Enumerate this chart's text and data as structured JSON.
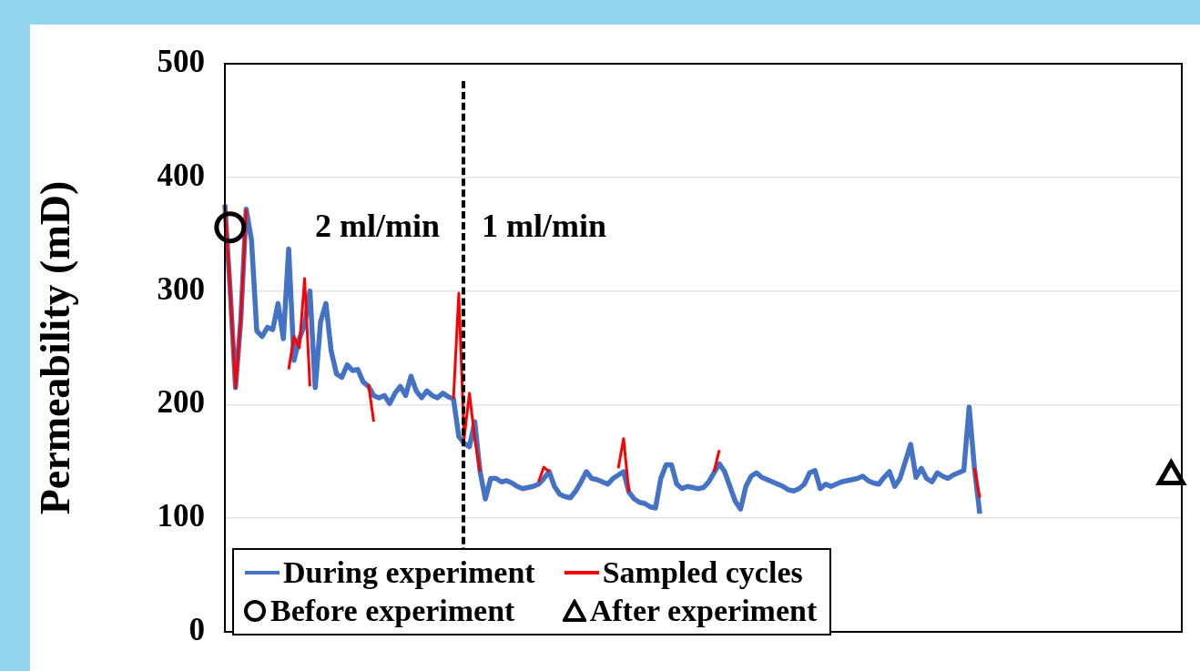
{
  "chart_data": {
    "type": "line",
    "ylabel": "Permeability (mD)",
    "ylim": [
      0,
      500
    ],
    "yticks": [
      0,
      100,
      200,
      300,
      400,
      500
    ],
    "grid": "y",
    "tick_labels": "y",
    "legend": "bottom left",
    "categories": [
      null,
      null,
      null,
      null,
      null,
      null,
      null,
      null,
      null,
      null,
      null,
      null,
      null,
      null,
      null,
      null,
      null,
      null,
      null,
      null,
      null,
      null,
      null,
      null,
      null,
      null,
      null,
      null,
      null,
      null,
      null,
      null,
      null,
      null,
      null,
      null,
      null,
      null,
      null,
      null,
      null,
      null,
      null,
      null,
      null,
      null,
      null,
      null,
      null,
      null,
      null,
      null,
      null,
      null,
      null,
      null,
      null,
      null,
      null,
      null,
      null,
      null,
      null,
      null,
      null,
      null,
      null,
      null,
      null,
      null,
      null,
      null,
      null,
      null,
      null,
      null,
      null,
      null,
      null,
      null,
      null,
      null,
      null,
      null,
      null,
      null,
      null,
      null,
      null,
      null,
      null,
      null,
      null,
      null,
      null,
      null,
      null,
      null,
      null,
      null,
      null,
      null,
      null,
      null,
      null,
      null,
      null,
      null,
      null,
      null,
      null,
      null,
      null,
      null,
      null,
      null,
      null,
      null,
      null,
      null,
      null,
      null,
      null,
      null,
      null,
      null,
      null,
      null,
      null,
      null,
      null,
      null,
      null,
      null,
      null,
      null,
      null,
      null,
      null,
      null,
      null,
      null,
      null,
      null,
      null,
      null,
      null,
      null,
      null,
      null,
      null,
      null,
      null,
      null,
      null,
      null,
      null,
      null,
      null,
      null,
      null,
      null,
      null,
      null,
      null,
      null,
      null,
      null,
      null,
      null,
      null,
      null,
      null,
      null,
      null,
      null,
      null,
      null,
      null,
      null,
      null
    ],
    "annotations": [
      "2 ml/min",
      "1 ml/min"
    ],
    "series": [
      {
        "name": "During experiment",
        "color": "#4472c4",
        "values": [
          376,
          300,
          215,
          275,
          372,
          345,
          265,
          260,
          268,
          266,
          289,
          258,
          337,
          239,
          258,
          270,
          300,
          215,
          273,
          289,
          247,
          227,
          224,
          235,
          230,
          231,
          220,
          216,
          208,
          206,
          208,
          201,
          210,
          216,
          208,
          225,
          212,
          206,
          212,
          208,
          206,
          210,
          207,
          205,
          172,
          166,
          163,
          185,
          141,
          117,
          135,
          135,
          132,
          133,
          131,
          128,
          126,
          127,
          128,
          130,
          135,
          141,
          128,
          121,
          119,
          118,
          124,
          132,
          141,
          135,
          134,
          132,
          130,
          135,
          138,
          141,
          123,
          117,
          114,
          113,
          110,
          109,
          135,
          147,
          147,
          130,
          126,
          128,
          127,
          126,
          127,
          132,
          140,
          148,
          141,
          128,
          115,
          108,
          128,
          137,
          140,
          136,
          134,
          132,
          130,
          128,
          125,
          124,
          126,
          130,
          140,
          142,
          126,
          130,
          128,
          130,
          132,
          133,
          134,
          135,
          137,
          133,
          131,
          130,
          136,
          141,
          128,
          135,
          150,
          165,
          136,
          144,
          135,
          132,
          140,
          137,
          135,
          138,
          140,
          142,
          198,
          144,
          104,
          null,
          null,
          null,
          null,
          null,
          null,
          null,
          null,
          null,
          null,
          null,
          null,
          null,
          null,
          null,
          null,
          null,
          null,
          null,
          null,
          null,
          null,
          null,
          null,
          null,
          null,
          null,
          null,
          null,
          null,
          null,
          null,
          null,
          null,
          null,
          null,
          null,
          null
        ]
      },
      {
        "name": "Sampled cycles",
        "color": "#ff0000",
        "values": [
          376,
          300,
          215,
          275,
          372,
          null,
          null,
          null,
          null,
          null,
          null,
          null,
          231,
          260,
          250,
          311,
          216,
          null,
          null,
          null,
          null,
          null,
          null,
          null,
          null,
          null,
          null,
          218,
          185,
          null,
          null,
          null,
          null,
          null,
          null,
          null,
          null,
          null,
          null,
          null,
          null,
          null,
          null,
          205,
          298,
          170,
          210,
          170,
          141,
          null,
          null,
          null,
          null,
          null,
          null,
          null,
          null,
          null,
          null,
          132,
          145,
          141,
          null,
          null,
          null,
          null,
          null,
          null,
          null,
          null,
          null,
          null,
          null,
          null,
          144,
          170,
          123,
          null,
          null,
          null,
          null,
          null,
          null,
          null,
          null,
          null,
          null,
          null,
          null,
          null,
          null,
          null,
          141,
          160,
          null,
          null,
          null,
          null,
          null,
          null,
          null,
          null,
          null,
          null,
          null,
          null,
          null,
          null,
          null,
          null,
          null,
          null,
          null,
          null,
          null,
          null,
          null,
          null,
          null,
          null,
          null,
          null,
          null,
          null,
          null,
          null,
          null,
          null,
          null,
          null,
          null,
          null,
          null,
          null,
          null,
          null,
          null,
          null,
          null,
          null,
          null,
          144,
          118,
          null,
          null,
          null,
          null,
          null,
          null,
          null,
          null,
          null,
          null,
          null,
          null,
          null,
          null,
          null,
          null,
          null,
          null,
          null,
          null,
          null,
          null,
          null,
          null,
          null,
          null,
          null,
          null,
          null,
          null,
          null,
          null,
          null,
          null,
          null,
          null,
          null,
          null
        ]
      },
      {
        "name": "Before experiment",
        "marker": "circle",
        "color": "#000000",
        "values": [
          null,
          356,
          null,
          null,
          null,
          null,
          null,
          null,
          null,
          null,
          null,
          null,
          null,
          null,
          null,
          null,
          null,
          null,
          null,
          null,
          null,
          null,
          null,
          null,
          null,
          null,
          null,
          null,
          null,
          null,
          null,
          null,
          null,
          null,
          null,
          null,
          null,
          null,
          null,
          null,
          null,
          null,
          null,
          null,
          null,
          null,
          null,
          null,
          null,
          null,
          null,
          null,
          null,
          null,
          null,
          null,
          null,
          null,
          null,
          null,
          null,
          null,
          null,
          null,
          null,
          null,
          null,
          null,
          null,
          null,
          null,
          null,
          null,
          null,
          null,
          null,
          null,
          null,
          null,
          null,
          null,
          null,
          null,
          null,
          null,
          null,
          null,
          null,
          null,
          null,
          null,
          null,
          null,
          null,
          null,
          null,
          null,
          null,
          null,
          null,
          null,
          null,
          null,
          null,
          null,
          null,
          null,
          null,
          null,
          null,
          null,
          null,
          null,
          null,
          null,
          null,
          null,
          null,
          null,
          null,
          null,
          null,
          null,
          null,
          null,
          null,
          null,
          null,
          null,
          null,
          null,
          null,
          null,
          null,
          null,
          null,
          null,
          null,
          null,
          null,
          null,
          null,
          null,
          null,
          null,
          null,
          null,
          null,
          null,
          null,
          null,
          null,
          null,
          null,
          null,
          null,
          null,
          null,
          null,
          null,
          null,
          null,
          null,
          null,
          null,
          null,
          null,
          null,
          null,
          null,
          null,
          null,
          null,
          null,
          null,
          null,
          null,
          null,
          null,
          null,
          null
        ]
      },
      {
        "name": "After experiment",
        "marker": "triangle",
        "color": "#000000",
        "values": [
          null,
          null,
          null,
          null,
          null,
          null,
          null,
          null,
          null,
          null,
          null,
          null,
          null,
          null,
          null,
          null,
          null,
          null,
          null,
          null,
          null,
          null,
          null,
          null,
          null,
          null,
          null,
          null,
          null,
          null,
          null,
          null,
          null,
          null,
          null,
          null,
          null,
          null,
          null,
          null,
          null,
          null,
          null,
          null,
          null,
          null,
          null,
          null,
          null,
          null,
          null,
          null,
          null,
          null,
          null,
          null,
          null,
          null,
          null,
          null,
          null,
          null,
          null,
          null,
          null,
          null,
          null,
          null,
          null,
          null,
          null,
          null,
          null,
          null,
          null,
          null,
          null,
          null,
          null,
          null,
          null,
          null,
          null,
          null,
          null,
          null,
          null,
          null,
          null,
          null,
          null,
          null,
          null,
          null,
          null,
          null,
          null,
          null,
          null,
          null,
          null,
          null,
          null,
          null,
          null,
          null,
          null,
          null,
          null,
          null,
          null,
          null,
          null,
          null,
          null,
          null,
          null,
          null,
          null,
          null,
          null,
          null,
          null,
          null,
          null,
          null,
          null,
          null,
          null,
          null,
          null,
          null,
          null,
          null,
          null,
          null,
          null,
          null,
          null,
          null,
          null,
          null,
          null,
          null,
          null,
          null,
          null,
          null,
          null,
          null,
          null,
          null,
          null,
          null,
          null,
          null,
          null,
          null,
          null,
          null,
          null,
          null,
          null,
          null,
          null,
          null,
          null,
          null,
          null,
          null,
          null,
          null,
          null,
          null,
          null,
          null,
          null,
          null,
          137,
          null,
          null
        ]
      }
    ]
  }
}
